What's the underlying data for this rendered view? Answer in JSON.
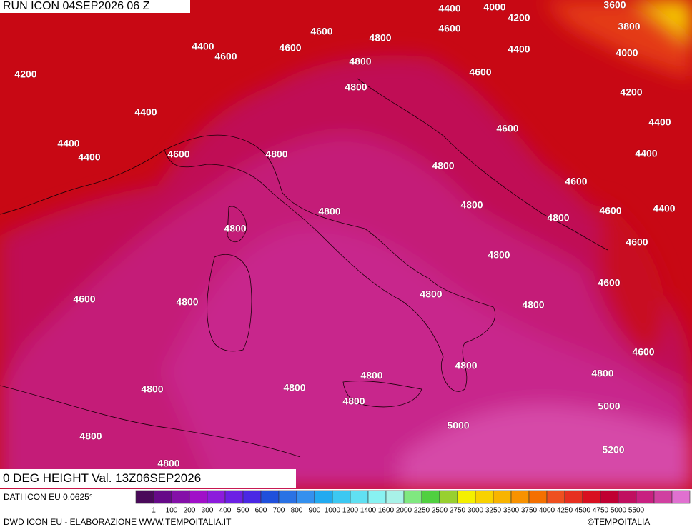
{
  "header": {
    "run": "RUN ICON 04SEP2026 06 Z",
    "variable": "0 DEG HEIGHT Val. 13Z06SEP2026"
  },
  "footer": {
    "source": "DATI ICON EU 0.0625°",
    "credits": "DWD ICON EU - ELABORAZIONE WWW.TEMPOITALIA.IT",
    "copyright": "©TEMPOITALIA"
  },
  "colorbar": {
    "levels": [
      1,
      100,
      200,
      300,
      400,
      500,
      600,
      700,
      800,
      900,
      1000,
      1200,
      1400,
      1600,
      2000,
      2250,
      2500,
      2750,
      3000,
      3250,
      3500,
      3750,
      4000,
      4250,
      4500,
      4750,
      5000,
      5500
    ],
    "colors": [
      "#4a0a5a",
      "#660a88",
      "#8410a8",
      "#a010c8",
      "#8c1cdc",
      "#6c20e4",
      "#4a28e4",
      "#2050dc",
      "#2a72e4",
      "#3490ee",
      "#22aaf0",
      "#3cc8f2",
      "#60e0f2",
      "#88f2f2",
      "#a8f2e8",
      "#80e880",
      "#50d040",
      "#98d030",
      "#f4f000",
      "#f8d200",
      "#f8b400",
      "#f89200",
      "#f47000",
      "#ee5020",
      "#e63020",
      "#d81020",
      "#c00032",
      "#c01060",
      "#c82080",
      "#d040a0",
      "#e070d0"
    ]
  },
  "contour_labels": [
    "4400",
    "4000",
    "3600",
    "4600",
    "4200",
    "4600",
    "3800",
    "4400",
    "4600",
    "4600",
    "4800",
    "4400",
    "4000",
    "4200",
    "4800",
    "4600",
    "4800",
    "4200",
    "4400",
    "4600",
    "4400",
    "4400",
    "4400",
    "4600",
    "4800",
    "4800",
    "4400",
    "4600",
    "4800",
    "4800",
    "4600",
    "4400",
    "4800",
    "4800",
    "4600",
    "4800",
    "4600",
    "4800",
    "4800",
    "4600",
    "4800",
    "4600",
    "4800",
    "4800",
    "4800",
    "4800",
    "4800",
    "4800",
    "5000",
    "5000",
    "4800",
    "5200",
    "4800"
  ]
}
